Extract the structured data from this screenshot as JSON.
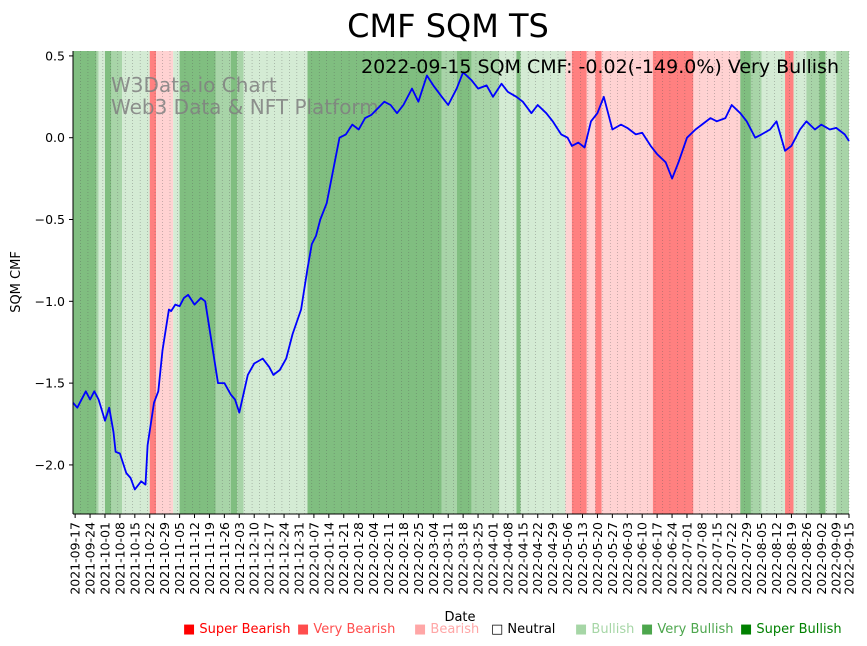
{
  "chart_data": {
    "type": "line",
    "title": "CMF SQM TS",
    "annotation": "2022-09-15 SQM CMF: -0.02(-149.0%) Very Bullish",
    "watermark": [
      "W3Data.io Chart",
      "Web3 Data & NFT Platform"
    ],
    "xlabel": "Date",
    "ylabel": "SQM CMF",
    "ylim": [
      -2.3,
      0.53
    ],
    "xlim": [
      "2021-09-16",
      "2022-09-15"
    ],
    "yticks": [
      0.5,
      0.0,
      -0.5,
      -1.0,
      -1.5,
      -2.0
    ],
    "ytick_labels": [
      "0.5",
      "0.0",
      "−0.5",
      "−1.0",
      "−1.5",
      "−2.0"
    ],
    "xticks": [
      "2021-09-17",
      "2021-09-24",
      "2021-10-01",
      "2021-10-08",
      "2021-10-15",
      "2021-10-22",
      "2021-10-29",
      "2021-11-05",
      "2021-11-12",
      "2021-11-19",
      "2021-11-26",
      "2021-12-03",
      "2021-12-10",
      "2021-12-17",
      "2021-12-24",
      "2021-12-31",
      "2022-01-07",
      "2022-01-14",
      "2022-01-21",
      "2022-01-28",
      "2022-02-04",
      "2022-02-11",
      "2022-02-18",
      "2022-02-25",
      "2022-03-04",
      "2022-03-11",
      "2022-03-18",
      "2022-03-25",
      "2022-04-01",
      "2022-04-08",
      "2022-04-15",
      "2022-04-22",
      "2022-04-29",
      "2022-05-06",
      "2022-05-13",
      "2022-05-20",
      "2022-05-27",
      "2022-06-03",
      "2022-06-10",
      "2022-06-17",
      "2022-06-24",
      "2022-07-01",
      "2022-07-08",
      "2022-07-15",
      "2022-07-22",
      "2022-07-29",
      "2022-08-05",
      "2022-08-12",
      "2022-08-19",
      "2022-08-26",
      "2022-09-02",
      "2022-09-09",
      "2022-09-15"
    ],
    "line_color": "#0000ff",
    "grid": "vertical dotted",
    "legend_position": "bottom-right",
    "legend": [
      {
        "label": "Super Bearish",
        "color": "#ff0000",
        "marker": "■"
      },
      {
        "label": "Very Bearish",
        "color": "#ff4d4d",
        "marker": "■"
      },
      {
        "label": "Bearish",
        "color": "#ffa6a6",
        "marker": "■"
      },
      {
        "label": "Neutral",
        "color": "#000000",
        "marker": "□"
      },
      {
        "label": "Bullish",
        "color": "#a6d6a6",
        "marker": "■"
      },
      {
        "label": "Very Bullish",
        "color": "#4da64d",
        "marker": "■"
      },
      {
        "label": "Super Bullish",
        "color": "#008000",
        "marker": "■"
      }
    ],
    "regime_colors": {
      "very_bearish": "#ff8080",
      "bearish": "#ffd2d2",
      "bullish": "#d4ebd4",
      "very_bullish": "#80be80",
      "green": "#a8d4a8"
    },
    "regimes": [
      {
        "start": "2021-09-16",
        "end": "2021-09-27",
        "state": "very_bullish"
      },
      {
        "start": "2021-09-27",
        "end": "2021-09-28",
        "state": "green"
      },
      {
        "start": "2021-09-28",
        "end": "2021-10-01",
        "state": "bullish"
      },
      {
        "start": "2021-10-01",
        "end": "2021-10-04",
        "state": "very_bullish"
      },
      {
        "start": "2021-10-04",
        "end": "2021-10-09",
        "state": "green"
      },
      {
        "start": "2021-10-09",
        "end": "2021-10-22",
        "state": "bullish"
      },
      {
        "start": "2021-10-22",
        "end": "2021-10-25",
        "state": "very_bearish"
      },
      {
        "start": "2021-10-25",
        "end": "2021-11-02",
        "state": "bearish"
      },
      {
        "start": "2021-11-02",
        "end": "2021-11-05",
        "state": "bullish"
      },
      {
        "start": "2021-11-05",
        "end": "2021-11-22",
        "state": "very_bullish"
      },
      {
        "start": "2021-11-22",
        "end": "2021-11-29",
        "state": "green"
      },
      {
        "start": "2021-11-29",
        "end": "2021-12-02",
        "state": "very_bullish"
      },
      {
        "start": "2021-12-02",
        "end": "2021-12-05",
        "state": "green"
      },
      {
        "start": "2021-12-05",
        "end": "2022-01-04",
        "state": "bullish"
      },
      {
        "start": "2022-01-04",
        "end": "2022-03-08",
        "state": "very_bullish"
      },
      {
        "start": "2022-03-08",
        "end": "2022-03-15",
        "state": "green"
      },
      {
        "start": "2022-03-15",
        "end": "2022-03-22",
        "state": "very_bullish"
      },
      {
        "start": "2022-03-22",
        "end": "2022-04-04",
        "state": "green"
      },
      {
        "start": "2022-04-04",
        "end": "2022-04-12",
        "state": "bullish"
      },
      {
        "start": "2022-04-12",
        "end": "2022-04-14",
        "state": "very_bullish"
      },
      {
        "start": "2022-04-14",
        "end": "2022-05-05",
        "state": "bullish"
      },
      {
        "start": "2022-05-05",
        "end": "2022-05-08",
        "state": "bearish"
      },
      {
        "start": "2022-05-08",
        "end": "2022-05-15",
        "state": "very_bearish"
      },
      {
        "start": "2022-05-15",
        "end": "2022-05-19",
        "state": "bearish"
      },
      {
        "start": "2022-05-19",
        "end": "2022-05-22",
        "state": "very_bearish"
      },
      {
        "start": "2022-05-22",
        "end": "2022-06-15",
        "state": "bearish"
      },
      {
        "start": "2022-06-15",
        "end": "2022-07-04",
        "state": "very_bearish"
      },
      {
        "start": "2022-07-04",
        "end": "2022-07-10",
        "state": "bearish"
      },
      {
        "start": "2022-07-10",
        "end": "2022-07-26",
        "state": "bearish"
      },
      {
        "start": "2022-07-26",
        "end": "2022-07-31",
        "state": "very_bullish"
      },
      {
        "start": "2022-07-31",
        "end": "2022-08-05",
        "state": "green"
      },
      {
        "start": "2022-08-05",
        "end": "2022-08-16",
        "state": "bullish"
      },
      {
        "start": "2022-08-16",
        "end": "2022-08-20",
        "state": "very_bearish"
      },
      {
        "start": "2022-08-20",
        "end": "2022-08-26",
        "state": "bullish"
      },
      {
        "start": "2022-08-26",
        "end": "2022-09-01",
        "state": "green"
      },
      {
        "start": "2022-09-01",
        "end": "2022-09-04",
        "state": "very_bullish"
      },
      {
        "start": "2022-09-04",
        "end": "2022-09-09",
        "state": "bullish"
      },
      {
        "start": "2022-09-09",
        "end": "2022-09-15",
        "state": "green"
      }
    ],
    "x": [
      "2021-09-16",
      "2021-09-18",
      "2021-09-22",
      "2021-09-24",
      "2021-09-26",
      "2021-09-28",
      "2021-10-01",
      "2021-10-03",
      "2021-10-05",
      "2021-10-06",
      "2021-10-08",
      "2021-10-11",
      "2021-10-13",
      "2021-10-15",
      "2021-10-18",
      "2021-10-20",
      "2021-10-21",
      "2021-10-24",
      "2021-10-26",
      "2021-10-28",
      "2021-10-31",
      "2021-11-01",
      "2021-11-03",
      "2021-11-05",
      "2021-11-07",
      "2021-11-09",
      "2021-11-12",
      "2021-11-15",
      "2021-11-17",
      "2021-11-20",
      "2021-11-23",
      "2021-11-26",
      "2021-11-29",
      "2021-12-01",
      "2021-12-03",
      "2021-12-07",
      "2021-12-10",
      "2021-12-14",
      "2021-12-17",
      "2021-12-19",
      "2021-12-22",
      "2021-12-25",
      "2021-12-28",
      "2022-01-01",
      "2022-01-04",
      "2022-01-06",
      "2022-01-08",
      "2022-01-10",
      "2022-01-13",
      "2022-01-16",
      "2022-01-19",
      "2022-01-22",
      "2022-01-25",
      "2022-01-28",
      "2022-01-31",
      "2022-02-03",
      "2022-02-06",
      "2022-02-09",
      "2022-02-12",
      "2022-02-15",
      "2022-02-18",
      "2022-02-22",
      "2022-02-25",
      "2022-03-01",
      "2022-03-04",
      "2022-03-08",
      "2022-03-11",
      "2022-03-15",
      "2022-03-18",
      "2022-03-22",
      "2022-03-25",
      "2022-03-29",
      "2022-04-01",
      "2022-04-05",
      "2022-04-08",
      "2022-04-12",
      "2022-04-15",
      "2022-04-19",
      "2022-04-22",
      "2022-04-26",
      "2022-04-29",
      "2022-05-03",
      "2022-05-06",
      "2022-05-08",
      "2022-05-11",
      "2022-05-14",
      "2022-05-17",
      "2022-05-20",
      "2022-05-23",
      "2022-05-27",
      "2022-05-31",
      "2022-06-03",
      "2022-06-07",
      "2022-06-10",
      "2022-06-14",
      "2022-06-17",
      "2022-06-21",
      "2022-06-24",
      "2022-06-27",
      "2022-07-01",
      "2022-07-05",
      "2022-07-08",
      "2022-07-12",
      "2022-07-15",
      "2022-07-19",
      "2022-07-22",
      "2022-07-26",
      "2022-07-29",
      "2022-08-02",
      "2022-08-05",
      "2022-08-09",
      "2022-08-12",
      "2022-08-16",
      "2022-08-19",
      "2022-08-23",
      "2022-08-26",
      "2022-08-30",
      "2022-09-02",
      "2022-09-06",
      "2022-09-09",
      "2022-09-13",
      "2022-09-15"
    ],
    "values": [
      -1.62,
      -1.65,
      -1.55,
      -1.6,
      -1.55,
      -1.6,
      -1.73,
      -1.65,
      -1.8,
      -1.92,
      -1.93,
      -2.05,
      -2.08,
      -2.15,
      -2.1,
      -2.12,
      -1.88,
      -1.62,
      -1.55,
      -1.3,
      -1.05,
      -1.06,
      -1.02,
      -1.03,
      -0.98,
      -0.96,
      -1.02,
      -0.98,
      -1.0,
      -1.25,
      -1.5,
      -1.5,
      -1.57,
      -1.6,
      -1.68,
      -1.45,
      -1.38,
      -1.35,
      -1.4,
      -1.45,
      -1.42,
      -1.35,
      -1.2,
      -1.05,
      -0.8,
      -0.65,
      -0.6,
      -0.5,
      -0.4,
      -0.2,
      0.0,
      0.02,
      0.08,
      0.05,
      0.12,
      0.14,
      0.18,
      0.22,
      0.2,
      0.15,
      0.2,
      0.3,
      0.22,
      0.38,
      0.32,
      0.25,
      0.2,
      0.3,
      0.4,
      0.35,
      0.3,
      0.32,
      0.25,
      0.33,
      0.28,
      0.25,
      0.22,
      0.15,
      0.2,
      0.15,
      0.1,
      0.02,
      0.0,
      -0.05,
      -0.03,
      -0.06,
      0.1,
      0.15,
      0.25,
      0.05,
      0.08,
      0.06,
      0.02,
      0.03,
      -0.05,
      -0.1,
      -0.15,
      -0.25,
      -0.15,
      0.0,
      0.05,
      0.08,
      0.12,
      0.1,
      0.12,
      0.2,
      0.15,
      0.1,
      0.0,
      0.02,
      0.05,
      0.1,
      -0.08,
      -0.05,
      0.05,
      0.1,
      0.05,
      0.08,
      0.05,
      0.06,
      0.02,
      -0.02
    ]
  }
}
